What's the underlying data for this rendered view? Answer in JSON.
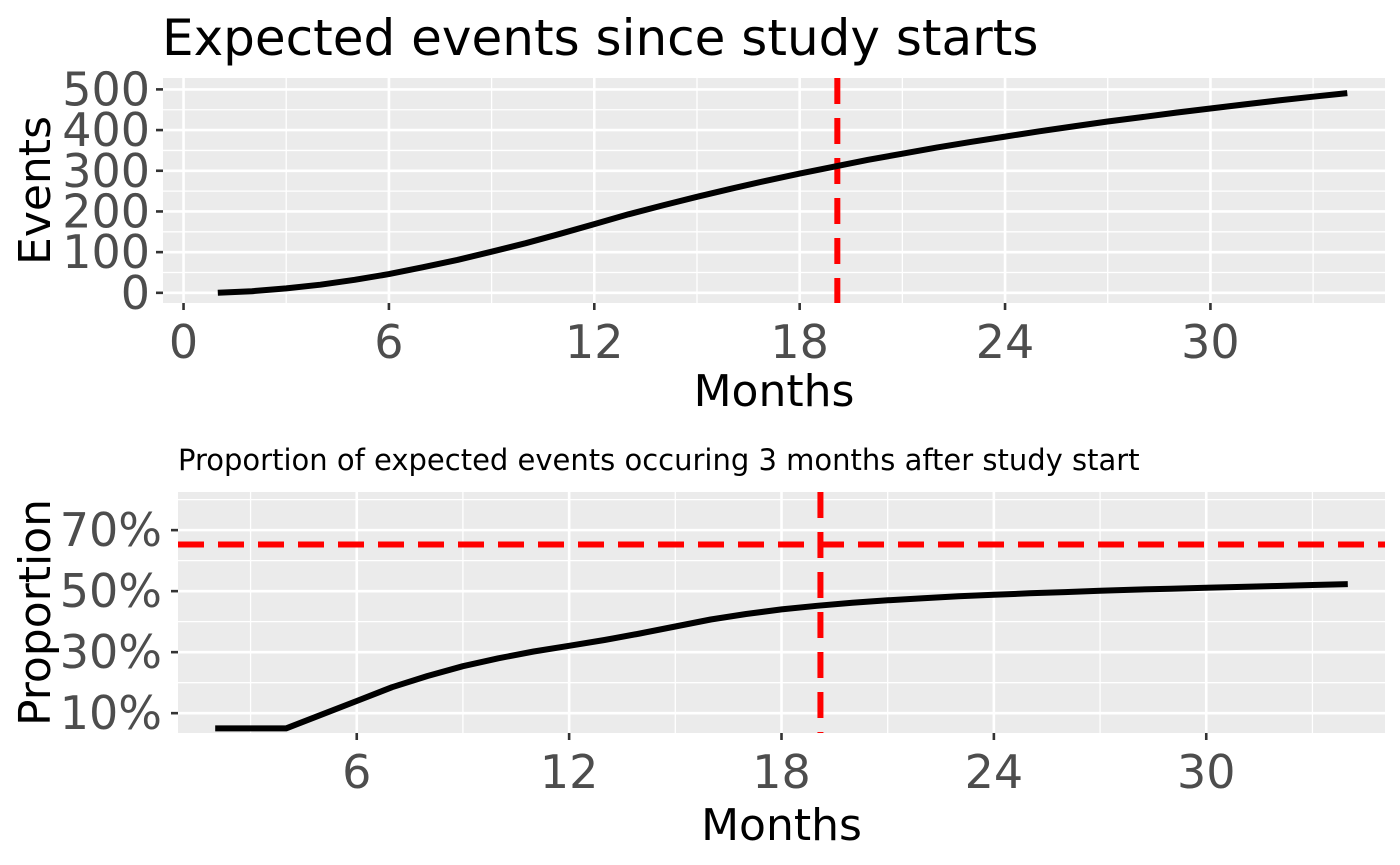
{
  "chart_data": [
    {
      "type": "line",
      "title": "Expected events since study starts",
      "xlabel": "Months",
      "ylabel": "Events",
      "xlim": [
        -0.6,
        35.1
      ],
      "ylim": [
        -25,
        528
      ],
      "x_ticks": [
        0,
        6,
        12,
        18,
        24,
        30
      ],
      "x_tick_labels": [
        "0",
        "6",
        "12",
        "18",
        "24",
        "30"
      ],
      "y_ticks": [
        0,
        100,
        200,
        300,
        400,
        500
      ],
      "y_tick_labels": [
        "0",
        "100",
        "200",
        "300",
        "400",
        "500"
      ],
      "grid": true,
      "legend": "none",
      "series": [
        {
          "color": "#000000",
          "x": [
            1,
            2,
            3,
            4,
            5,
            6,
            7,
            8,
            9,
            10,
            11,
            12,
            13,
            14,
            15,
            16,
            17,
            18,
            19,
            20,
            21,
            22,
            23,
            24,
            25,
            26,
            27,
            28,
            29,
            30,
            31,
            32,
            33,
            34
          ],
          "y": [
            0,
            4,
            11,
            20,
            32,
            46,
            63,
            81,
            101,
            122,
            145,
            169,
            193,
            215,
            236,
            256,
            275,
            293,
            310,
            327,
            342,
            357,
            371,
            384,
            397,
            409,
            421,
            432,
            443,
            453,
            463,
            473,
            482,
            491
          ]
        }
      ],
      "reference_lines": [
        {
          "orientation": "vertical",
          "x": 19.1,
          "color": "#ff0000",
          "style": "dashed"
        }
      ]
    },
    {
      "type": "line",
      "title": "Proportion of expected events occuring 3 months after study start",
      "xlabel": "Months",
      "ylabel": "Proportion",
      "xlim": [
        0.95,
        35.05
      ],
      "ylim": [
        0.035,
        0.825
      ],
      "x_ticks": [
        6,
        12,
        18,
        24,
        30
      ],
      "x_tick_labels": [
        "6",
        "12",
        "18",
        "24",
        "30"
      ],
      "y_ticks": [
        0.1,
        0.3,
        0.5,
        0.7
      ],
      "y_tick_labels": [
        "10%",
        "30%",
        "50%",
        "70%"
      ],
      "grid": true,
      "legend": "none",
      "series": [
        {
          "color": "#000000",
          "x": [
            2,
            3,
            4,
            5,
            6,
            7,
            8,
            9,
            10,
            11,
            12,
            13,
            14,
            15,
            16,
            17,
            18,
            19,
            20,
            21,
            22,
            23,
            24,
            25,
            26,
            27,
            28,
            29,
            30,
            31,
            32,
            33,
            34
          ],
          "y": [
            0.05,
            0.05,
            0.05,
            0.095,
            0.14,
            0.185,
            0.222,
            0.254,
            0.28,
            0.302,
            0.321,
            0.34,
            0.361,
            0.384,
            0.407,
            0.425,
            0.44,
            0.452,
            0.462,
            0.47,
            0.477,
            0.483,
            0.488,
            0.493,
            0.497,
            0.501,
            0.505,
            0.508,
            0.511,
            0.514,
            0.517,
            0.52,
            0.523
          ]
        }
      ],
      "reference_lines": [
        {
          "orientation": "vertical",
          "x": 19.1,
          "color": "#ff0000",
          "style": "dashed"
        },
        {
          "orientation": "horizontal",
          "y": 0.653,
          "color": "#ff0000",
          "style": "dashed"
        }
      ]
    }
  ]
}
